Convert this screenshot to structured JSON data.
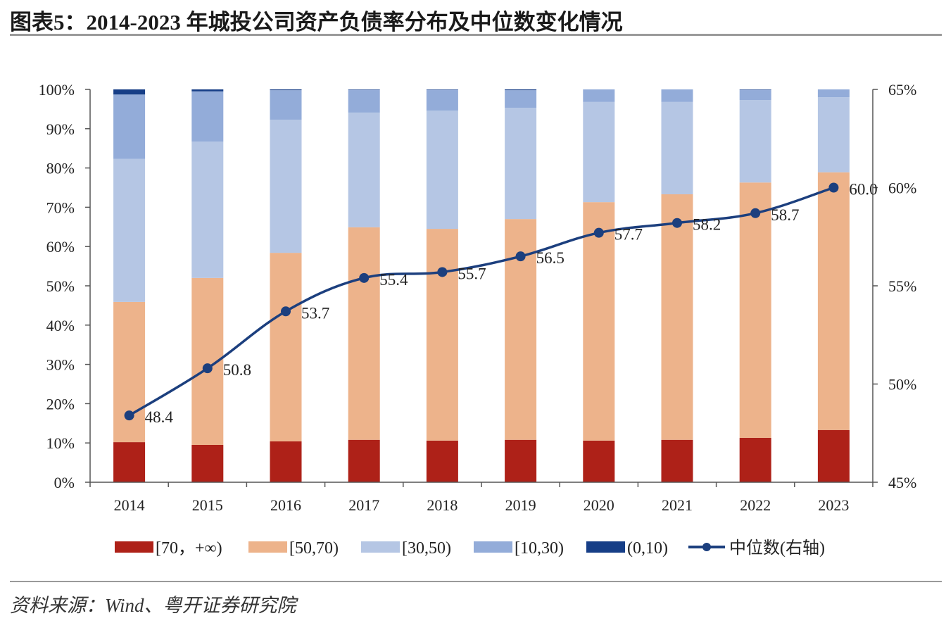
{
  "title": "图表5：2014-2023 年城投公司资产负债率分布及中位数变化情况",
  "source": "资料来源：Wind、粤开证券研究院",
  "chart_data": {
    "type": "bar",
    "subtype": "stacked-percent-with-line",
    "title": "图表5：2014-2023 年城投公司资产负债率分布及中位数变化情况",
    "xlabel": "",
    "ylabel": "",
    "categories": [
      "2014",
      "2015",
      "2016",
      "2017",
      "2018",
      "2019",
      "2020",
      "2021",
      "2022",
      "2023"
    ],
    "y_left": {
      "range": [
        0,
        100
      ],
      "ticks": [
        "0%",
        "10%",
        "20%",
        "30%",
        "40%",
        "50%",
        "60%",
        "70%",
        "80%",
        "90%",
        "100%"
      ]
    },
    "y_right": {
      "range": [
        45,
        65
      ],
      "ticks": [
        "45%",
        "50%",
        "55%",
        "60%",
        "65%"
      ]
    },
    "grid": false,
    "legend_position": "bottom",
    "series": [
      {
        "name": "[70，+∞)",
        "color": "#ae2118",
        "axis": "left",
        "values": [
          10.2,
          9.5,
          10.4,
          10.8,
          10.6,
          10.8,
          10.6,
          10.8,
          11.3,
          13.3
        ]
      },
      {
        "name": "[50,70)",
        "color": "#edb38b",
        "axis": "left",
        "values": [
          35.7,
          42.5,
          48.0,
          54.1,
          53.9,
          56.2,
          60.7,
          62.5,
          65.0,
          65.6
        ]
      },
      {
        "name": "[30,50)",
        "color": "#b5c6e4",
        "axis": "left",
        "values": [
          36.4,
          34.7,
          33.9,
          29.2,
          30.1,
          28.3,
          25.5,
          23.5,
          21.0,
          19.1
        ]
      },
      {
        "name": "[10,30)",
        "color": "#93acd9",
        "axis": "left",
        "values": [
          16.4,
          12.8,
          7.5,
          5.8,
          5.3,
          4.5,
          3.2,
          3.2,
          2.6,
          2.0
        ]
      },
      {
        "name": "(0,10)",
        "color": "#163e87",
        "axis": "left",
        "values": [
          1.3,
          0.5,
          0.2,
          0.1,
          0.1,
          0.2,
          0.0,
          0.0,
          0.1,
          0.0
        ]
      },
      {
        "name": "中位数(右轴)",
        "color": "#1c3f7e",
        "axis": "right",
        "type": "line",
        "values": [
          48.4,
          50.8,
          53.7,
          55.4,
          55.7,
          56.5,
          57.7,
          58.2,
          58.7,
          60.0
        ],
        "labels": [
          "48.4",
          "50.8",
          "53.7",
          "55.4",
          "55.7",
          "56.5",
          "57.7",
          "58.2",
          "58.7",
          "60.0"
        ]
      }
    ]
  }
}
